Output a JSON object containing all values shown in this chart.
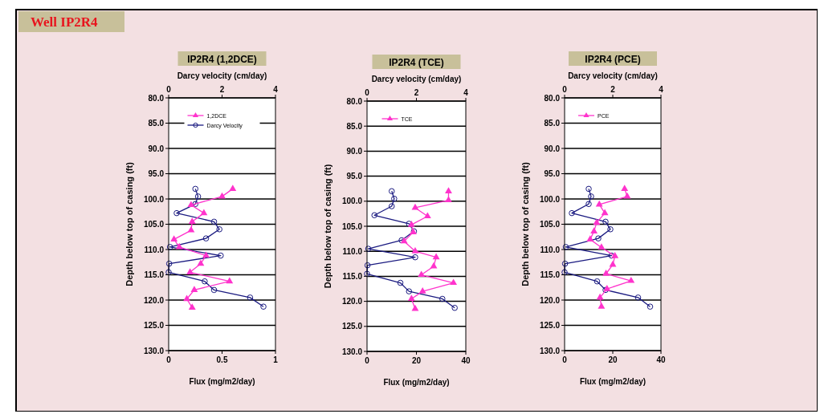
{
  "chart_data": [
    {
      "type": "line",
      "title": "IP2R4 (1,2DCE)",
      "xlabel": "Flux (mg/m2/day)",
      "x2label": "Darcy velocity (cm/day)",
      "ylabel": "Depth below top of casing (ft)",
      "annotations": [
        "Well IP2R4"
      ],
      "xlim": [
        0,
        1
      ],
      "xticks": [
        0,
        0.5,
        1
      ],
      "x2lim": [
        0,
        4
      ],
      "x2ticks": [
        0,
        2,
        4
      ],
      "ylim": [
        130,
        80
      ],
      "yticks": [
        {
          "value": 80,
          "label": "80.0"
        },
        {
          "value": 85,
          "label": "85.0"
        },
        {
          "value": 90,
          "label": "90.0"
        },
        {
          "value": 95,
          "label": "95.0"
        },
        {
          "value": 100,
          "label": "100.0"
        },
        {
          "value": 105,
          "label": "105.0"
        },
        {
          "value": 110,
          "label": "110.0"
        },
        {
          "value": 115,
          "label": "115.0"
        },
        {
          "value": 120,
          "label": "120.0"
        },
        {
          "value": 125,
          "label": "125.0"
        },
        {
          "value": 130,
          "label": "130.0"
        }
      ],
      "grid": "y",
      "legend": "top",
      "line_style": "solid",
      "series": [
        {
          "name": "1,2DCE",
          "color": "#ff33cc",
          "marker": "triangle",
          "x": [
            0.6,
            0.5,
            0.21,
            0.33,
            0.22,
            0.21,
            0.05,
            0.1,
            0.35,
            0.3,
            0.2,
            0.57,
            0.24,
            0.17,
            0.22
          ],
          "values": [
            98,
            99.5,
            101.2,
            102.8,
            104.5,
            106.2,
            108,
            109.5,
            111.2,
            112.8,
            114.5,
            116.3,
            118,
            119.8,
            121.5
          ]
        },
        {
          "name": "Darcy Velocity",
          "color": "#1a1a80",
          "marker": "circle",
          "axis": "x2",
          "x": [
            1.0,
            1.1,
            1.0,
            0.3,
            1.7,
            1.9,
            1.4,
            0.05,
            1.95,
            0.02,
            0.0,
            1.35,
            1.7,
            3.05,
            3.55
          ],
          "values": [
            98,
            99.5,
            101,
            102.8,
            104.5,
            106,
            107.8,
            109.5,
            111.2,
            112.8,
            114.5,
            116.3,
            118,
            119.5,
            121.3
          ]
        }
      ]
    },
    {
      "type": "line",
      "title": "IP2R4 (TCE)",
      "xlabel": "Flux (mg/m2/day)",
      "x2label": "Darcy velocity (cm/day)",
      "ylabel": "Depth below top of casing (ft)",
      "xlim": [
        0,
        40
      ],
      "xticks": [
        0,
        20,
        40
      ],
      "x2lim": [
        0,
        4
      ],
      "x2ticks": [
        0,
        2,
        4
      ],
      "ylim": [
        130,
        80
      ],
      "yticks": [
        {
          "value": 80,
          "label": "80.0"
        },
        {
          "value": 85,
          "label": "85.0"
        },
        {
          "value": 90,
          "label": "90.0"
        },
        {
          "value": 95,
          "label": "95.0"
        },
        {
          "value": 100,
          "label": "100.0"
        },
        {
          "value": 105,
          "label": "105.0"
        },
        {
          "value": 110,
          "label": "110.0"
        },
        {
          "value": 115,
          "label": "115.0"
        },
        {
          "value": 120,
          "label": "120.0"
        },
        {
          "value": 125,
          "label": "125.0"
        },
        {
          "value": 130,
          "label": "130.0"
        }
      ],
      "grid": "y",
      "legend": "top",
      "line_style": "solid",
      "series": [
        {
          "name": "TCE",
          "color": "#ff33cc",
          "marker": "triangle",
          "x": [
            33,
            33,
            19.5,
            24.5,
            18,
            18.7,
            15,
            19.5,
            28,
            27,
            22,
            35,
            22.5,
            18,
            19.5
          ],
          "values": [
            98,
            99.8,
            101.3,
            103,
            104.7,
            106.2,
            108,
            110,
            111.2,
            113,
            114.7,
            116.3,
            118,
            119.5,
            121.5
          ]
        },
        {
          "color": "#1a1a80",
          "marker": "circle",
          "axis": "x2",
          "x": [
            1.0,
            1.1,
            1.0,
            0.3,
            1.7,
            1.9,
            1.4,
            0.05,
            1.95,
            0.02,
            0.0,
            1.35,
            1.7,
            3.05,
            3.55
          ],
          "values": [
            98,
            99.5,
            101,
            102.8,
            104.5,
            106,
            107.8,
            109.5,
            111.2,
            112.8,
            114.5,
            116.3,
            118,
            119.5,
            121.3
          ]
        }
      ]
    },
    {
      "type": "line",
      "title": "IP2R4 (PCE)",
      "xlabel": "Flux (mg/m2/day)",
      "x2label": "Darcy velocity (cm/day)",
      "ylabel": "Depth below top of casing (ft)",
      "xlim": [
        0,
        40
      ],
      "xticks": [
        0,
        20,
        40
      ],
      "x2lim": [
        0,
        4
      ],
      "x2ticks": [
        0,
        2,
        4
      ],
      "ylim": [
        130,
        80
      ],
      "yticks": [
        {
          "value": 80,
          "label": "80.0"
        },
        {
          "value": 85,
          "label": "85.0"
        },
        {
          "value": 90,
          "label": "90.0"
        },
        {
          "value": 95,
          "label": "95.0"
        },
        {
          "value": 100,
          "label": "100.0"
        },
        {
          "value": 105,
          "label": "105.0"
        },
        {
          "value": 110,
          "label": "110.0"
        },
        {
          "value": 115,
          "label": "115.0"
        },
        {
          "value": 120,
          "label": "120.0"
        },
        {
          "value": 125,
          "label": "125.0"
        },
        {
          "value": 130,
          "label": "130.0"
        }
      ],
      "grid": "y",
      "legend": "top",
      "line_style": "solid",
      "series": [
        {
          "name": "PCE",
          "color": "#ff33cc",
          "marker": "triangle",
          "x": [
            24.9,
            26,
            14.4,
            16.7,
            13.3,
            12.2,
            10.6,
            15.3,
            20.9,
            20,
            17.2,
            27.6,
            17.6,
            14.7,
            15.3
          ],
          "values": [
            98,
            99.5,
            101.1,
            102.8,
            104.7,
            106.4,
            108,
            109.6,
            111.3,
            113,
            114.8,
            116.2,
            117.8,
            119.5,
            121.3
          ]
        },
        {
          "color": "#1a1a80",
          "marker": "circle",
          "axis": "x2",
          "x": [
            1.0,
            1.1,
            1.0,
            0.3,
            1.7,
            1.9,
            1.4,
            0.05,
            1.95,
            0.02,
            0.0,
            1.35,
            1.7,
            3.05,
            3.55
          ],
          "values": [
            98,
            99.5,
            101,
            102.8,
            104.5,
            106,
            107.8,
            109.5,
            111.2,
            112.8,
            114.5,
            116.3,
            118,
            119.5,
            121.3
          ]
        }
      ]
    }
  ]
}
